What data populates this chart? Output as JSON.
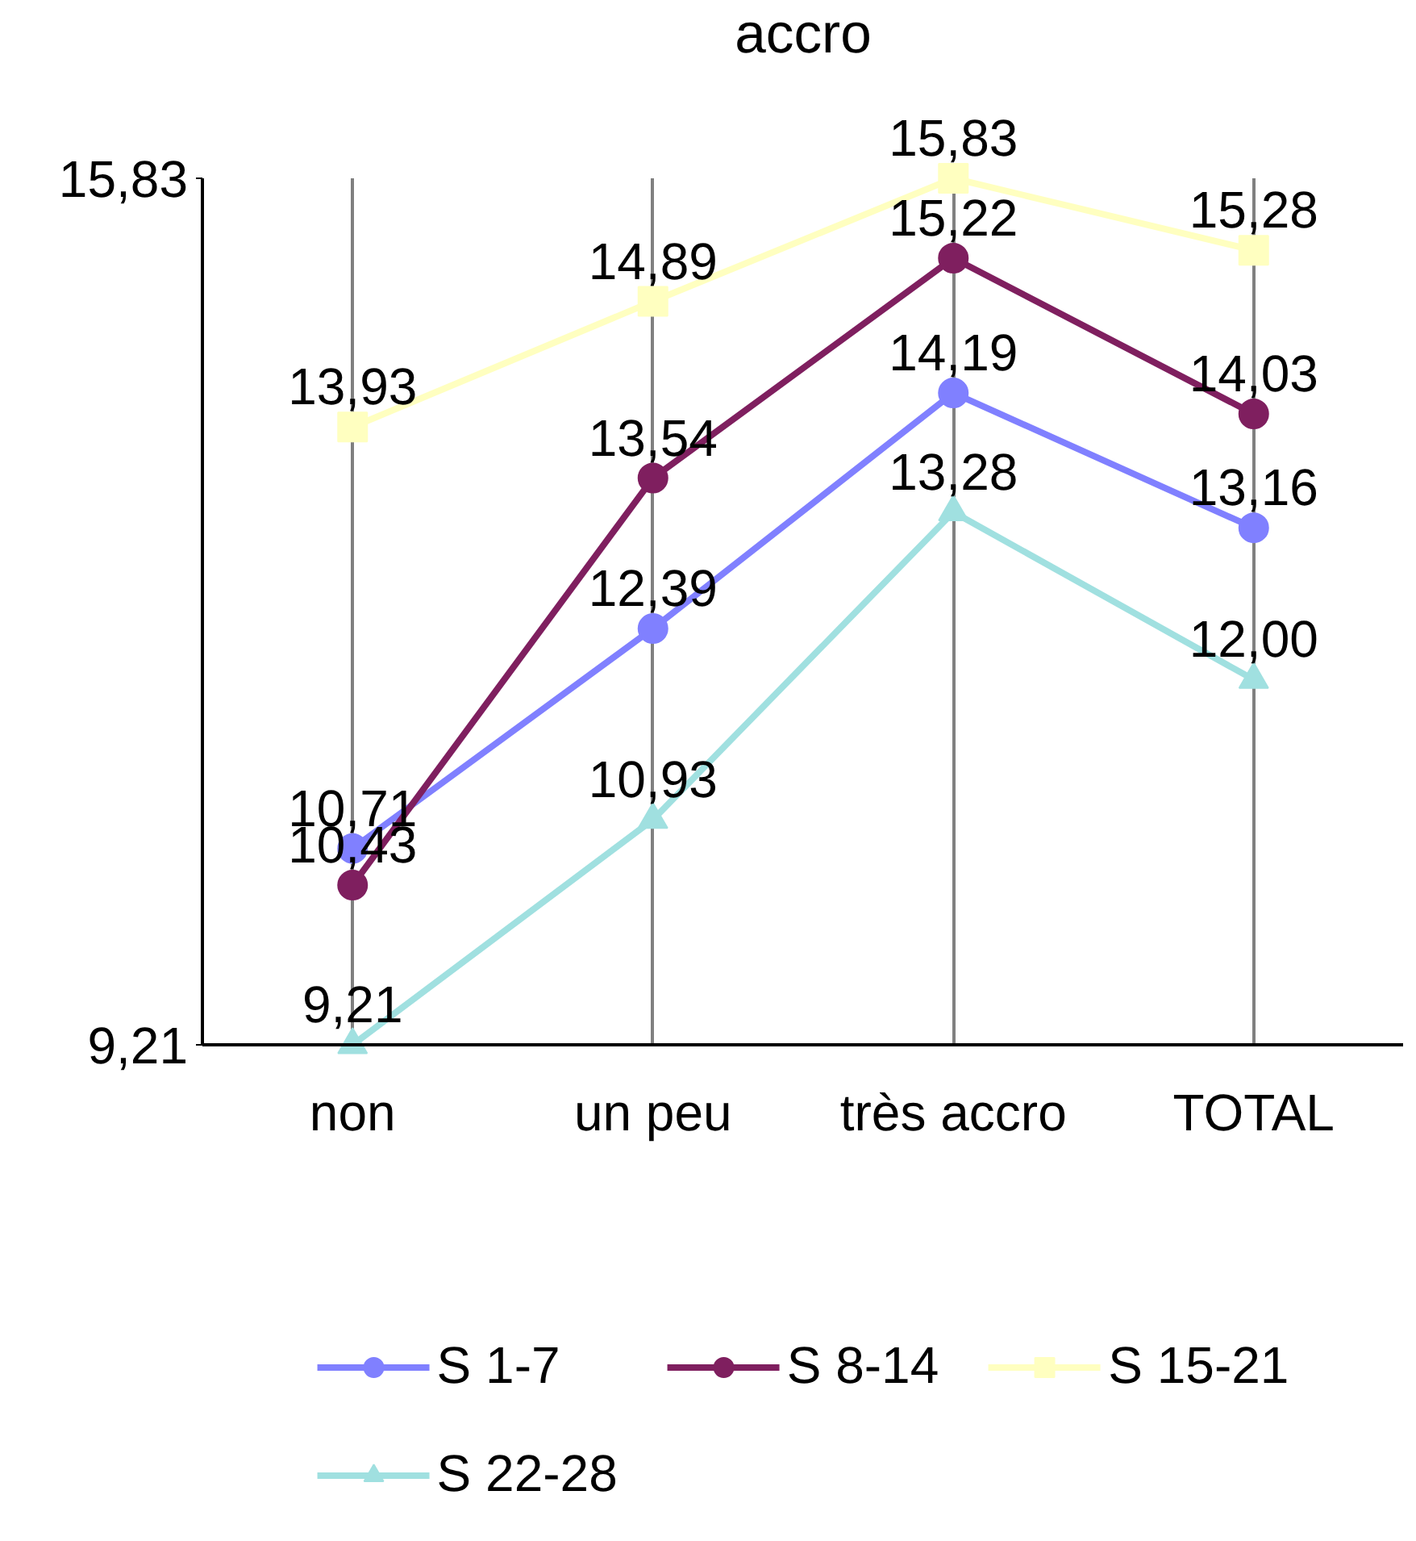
{
  "chart_data": {
    "type": "line",
    "title": "accro",
    "categories": [
      "non",
      "un peu",
      "très accro",
      "TOTAL"
    ],
    "series": [
      {
        "name": "S 1-7",
        "color": "#8080ff",
        "marker": "circle",
        "values": [
          10.71,
          12.39,
          14.19,
          13.16
        ],
        "value_labels": [
          "10,71",
          "12,39",
          "14,19",
          "13,16"
        ]
      },
      {
        "name": "S 8-14",
        "color": "#7f1f5f",
        "marker": "circle",
        "values": [
          10.43,
          13.54,
          15.22,
          14.03
        ],
        "value_labels": [
          "10,43",
          "13,54",
          "15,22",
          "14,03"
        ]
      },
      {
        "name": "S 15-21",
        "color": "#ffffc0",
        "marker": "square",
        "values": [
          13.93,
          14.89,
          15.83,
          15.28
        ],
        "value_labels": [
          "13,93",
          "14,89",
          "15,83",
          "15,28"
        ]
      },
      {
        "name": "S 22-28",
        "color": "#a0e0e0",
        "marker": "triangle",
        "values": [
          9.21,
          10.93,
          13.28,
          12.0
        ],
        "value_labels": [
          "9,21",
          "10,93",
          "13,28",
          "12,00"
        ]
      }
    ],
    "ylim": [
      9.21,
      15.83
    ],
    "yticks": [
      {
        "value": 9.21,
        "label": "9,21"
      },
      {
        "value": 15.83,
        "label": "15,83"
      }
    ],
    "grid": "x",
    "legend": "bottom",
    "line_style": "solid"
  }
}
